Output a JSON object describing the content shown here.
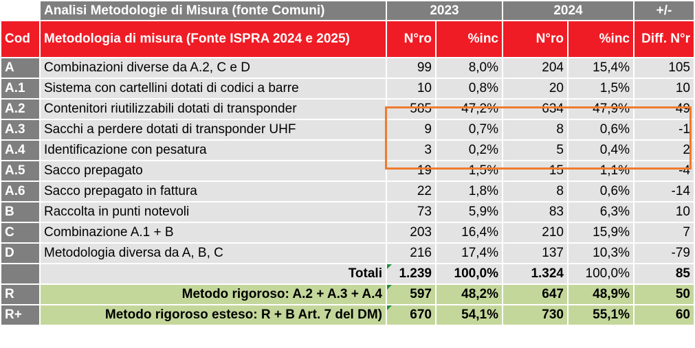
{
  "header": {
    "title": "Analisi Metodologie di Misura (fonte Comuni)",
    "year_a": "2023",
    "year_b": "2024",
    "diff": "+/-"
  },
  "columns": {
    "cod": "Cod",
    "method": "Metodologia di misura (Fonte ISPRA 2024 e 2025)",
    "n_a": "N°ro",
    "inc_a": "%inc",
    "n_b": "N°ro",
    "inc_b": "%inc",
    "diff_n": "Diff. N°r"
  },
  "rows": [
    {
      "cod": "A",
      "method": "Combinazioni diverse da A.2, C e D",
      "n_a": "99",
      "inc_a": "8,0%",
      "n_b": "204",
      "inc_b": "15,4%",
      "diff": "105"
    },
    {
      "cod": "A.1",
      "method": "Sistema con cartellini dotati di codici a barre",
      "n_a": "10",
      "inc_a": "0,8%",
      "n_b": "20",
      "inc_b": "1,5%",
      "diff": "10"
    },
    {
      "cod": "A.2",
      "method": "Contenitori riutilizzabili dotati di transponder",
      "n_a": "585",
      "inc_a": "47,2%",
      "n_b": "634",
      "inc_b": "47,9%",
      "diff": "49"
    },
    {
      "cod": "A.3",
      "method": "Sacchi a perdere dotati di transponder UHF",
      "n_a": "9",
      "inc_a": "0,7%",
      "n_b": "8",
      "inc_b": "0,6%",
      "diff": "-1"
    },
    {
      "cod": "A.4",
      "method": "Identificazione con pesatura",
      "n_a": "3",
      "inc_a": "0,2%",
      "n_b": "5",
      "inc_b": "0,4%",
      "diff": "2"
    },
    {
      "cod": "A.5",
      "method": "Sacco prepagato",
      "n_a": "19",
      "inc_a": "1,5%",
      "n_b": "15",
      "inc_b": "1,1%",
      "diff": "-4"
    },
    {
      "cod": "A.6",
      "method": "Sacco prepagato in fattura",
      "n_a": "22",
      "inc_a": "1,8%",
      "n_b": "8",
      "inc_b": "0,6%",
      "diff": "-14"
    },
    {
      "cod": "B",
      "method": "Raccolta in punti notevoli",
      "n_a": "73",
      "inc_a": "5,9%",
      "n_b": "83",
      "inc_b": "6,3%",
      "diff": "10"
    },
    {
      "cod": "C",
      "method": "Combinazione A.1 + B",
      "n_a": "203",
      "inc_a": "16,4%",
      "n_b": "210",
      "inc_b": "15,9%",
      "diff": "7"
    },
    {
      "cod": "D",
      "method": "Metodologia diversa da A, B, C",
      "n_a": "216",
      "inc_a": "17,4%",
      "n_b": "137",
      "inc_b": "10,3%",
      "diff": "-79"
    }
  ],
  "totals": {
    "label": "Totali",
    "n_a": "1.239",
    "inc_a": "100,0%",
    "n_b": "1.324",
    "inc_b": "100,0%",
    "diff": "85"
  },
  "summary": [
    {
      "cod": "R",
      "label": "Metodo rigoroso: A.2 + A.3 + A.4",
      "n_a": "597",
      "inc_a": "48,2%",
      "n_b": "647",
      "inc_b": "48,9%",
      "diff": "50"
    },
    {
      "cod": "R+",
      "label": "Metodo rigoroso esteso: R  + B  Art. 7 del DM)",
      "n_a": "670",
      "inc_a": "54,1%",
      "n_b": "730",
      "inc_b": "55,1%",
      "diff": "60"
    }
  ],
  "colors": {
    "header_red": "#ef1c25",
    "header_gray": "#7f7f7f",
    "row_gray": "#e3e3e3",
    "summary_green": "#c4d79b",
    "highlight_orange": "#f07a2c"
  }
}
